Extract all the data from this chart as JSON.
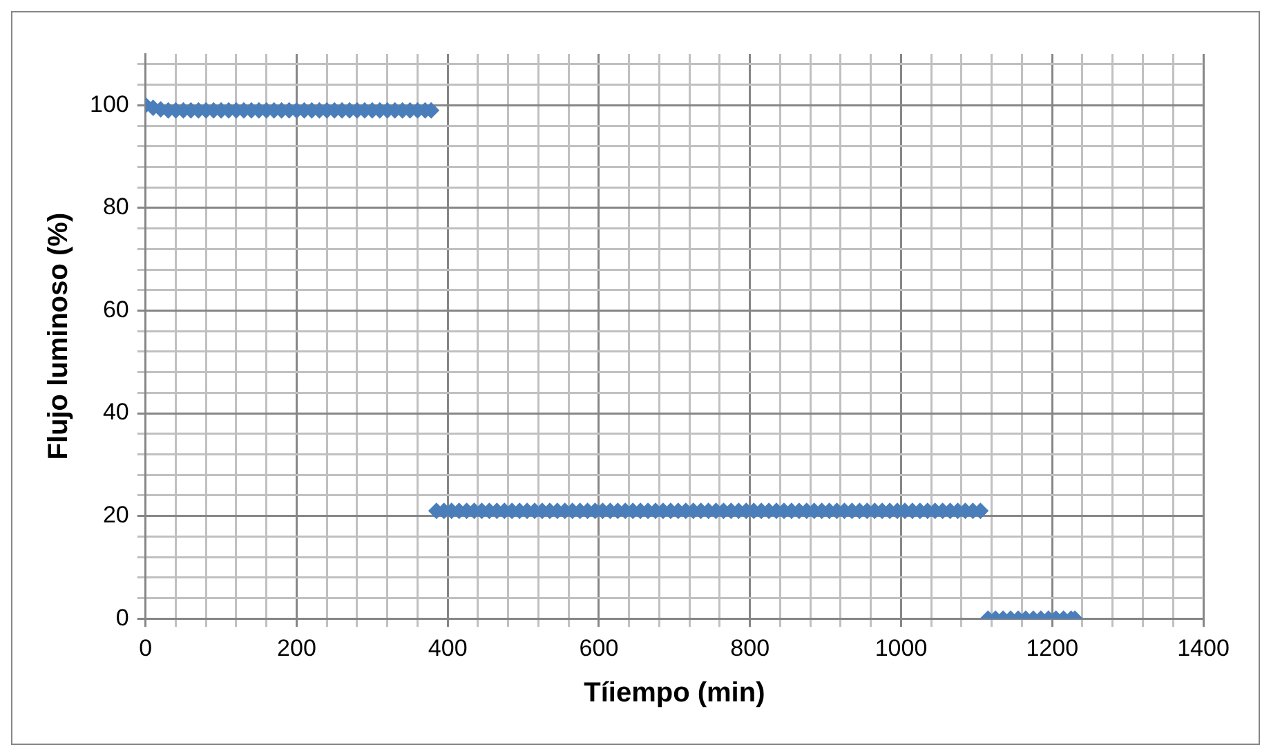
{
  "chart_data": {
    "type": "scatter",
    "xlabel": "Tíiempo (min)",
    "ylabel": "Flujo luminoso (%)",
    "marker": "diamond",
    "grid": true,
    "legend": false,
    "xlim": [
      0,
      1400
    ],
    "ylim": [
      0,
      110
    ],
    "xticks": [
      0,
      {
        "value": 40,
        "label": null
      },
      {
        "value": 80,
        "label": null
      },
      {
        "value": 120,
        "label": null
      },
      {
        "value": 160,
        "label": null
      },
      200,
      {
        "value": 240,
        "label": null
      },
      {
        "value": 280,
        "label": null
      },
      {
        "value": 320,
        "label": null
      },
      {
        "value": 360,
        "label": null
      },
      400,
      {
        "value": 440,
        "label": null
      },
      {
        "value": 480,
        "label": null
      },
      {
        "value": 520,
        "label": null
      },
      {
        "value": 560,
        "label": null
      },
      600,
      {
        "value": 640,
        "label": null
      },
      {
        "value": 680,
        "label": null
      },
      {
        "value": 720,
        "label": null
      },
      {
        "value": 760,
        "label": null
      },
      800,
      {
        "value": 840,
        "label": null
      },
      {
        "value": 880,
        "label": null
      },
      {
        "value": 920,
        "label": null
      },
      {
        "value": 960,
        "label": null
      },
      1000,
      {
        "value": 1040,
        "label": null
      },
      {
        "value": 1080,
        "label": null
      },
      {
        "value": 1120,
        "label": null
      },
      {
        "value": 1160,
        "label": null
      },
      1200,
      {
        "value": 1240,
        "label": null
      },
      {
        "value": 1280,
        "label": null
      },
      {
        "value": 1320,
        "label": null
      },
      {
        "value": 1360,
        "label": null
      },
      1400
    ],
    "yticks": [
      0,
      {
        "value": 4,
        "label": null
      },
      {
        "value": 8,
        "label": null
      },
      {
        "value": 12,
        "label": null
      },
      {
        "value": 16,
        "label": null
      },
      20,
      {
        "value": 24,
        "label": null
      },
      {
        "value": 28,
        "label": null
      },
      {
        "value": 32,
        "label": null
      },
      {
        "value": 36,
        "label": null
      },
      40,
      {
        "value": 44,
        "label": null
      },
      {
        "value": 48,
        "label": null
      },
      {
        "value": 52,
        "label": null
      },
      {
        "value": 56,
        "label": null
      },
      60,
      {
        "value": 64,
        "label": null
      },
      {
        "value": 68,
        "label": null
      },
      {
        "value": 72,
        "label": null
      },
      {
        "value": 76,
        "label": null
      },
      80,
      {
        "value": 84,
        "label": null
      },
      {
        "value": 88,
        "label": null
      },
      {
        "value": 92,
        "label": null
      },
      {
        "value": 96,
        "label": null
      },
      100,
      {
        "value": 104,
        "label": null
      },
      {
        "value": 108,
        "label": null
      }
    ],
    "series": [
      {
        "color": "#4a7ebb",
        "x": [
          0,
          10,
          20,
          30,
          40,
          50,
          60,
          70,
          80,
          90,
          100,
          110,
          120,
          130,
          140,
          150,
          160,
          170,
          180,
          190,
          200,
          210,
          220,
          230,
          240,
          250,
          260,
          270,
          280,
          290,
          300,
          310,
          320,
          330,
          340,
          350,
          360,
          370,
          378
        ],
        "values": [
          100,
          99.5,
          99.2,
          99,
          99,
          99,
          99,
          99,
          99,
          99,
          99,
          99,
          99,
          99,
          99,
          99,
          99,
          99,
          99,
          99,
          99,
          99,
          99,
          99,
          99,
          99,
          99,
          99,
          99,
          99,
          99,
          99,
          99,
          99,
          99,
          99,
          99,
          99,
          99
        ]
      },
      {
        "color": "#4a7ebb",
        "x": [
          385,
          395,
          405,
          415,
          425,
          435,
          445,
          455,
          465,
          475,
          485,
          495,
          505,
          515,
          525,
          535,
          545,
          555,
          565,
          575,
          585,
          595,
          605,
          615,
          625,
          635,
          645,
          655,
          665,
          675,
          685,
          695,
          705,
          715,
          725,
          735,
          745,
          755,
          765,
          775,
          785,
          795,
          805,
          815,
          825,
          835,
          845,
          855,
          865,
          875,
          885,
          895,
          905,
          915,
          925,
          935,
          945,
          955,
          965,
          975,
          985,
          995,
          1005,
          1015,
          1025,
          1035,
          1045,
          1055,
          1065,
          1075,
          1085,
          1095,
          1105
        ],
        "values": [
          21,
          21,
          21,
          21,
          21,
          21,
          21,
          21,
          21,
          21,
          21,
          21,
          21,
          21,
          21,
          21,
          21,
          21,
          21,
          21,
          21,
          21,
          21,
          21,
          21,
          21,
          21,
          21,
          21,
          21,
          21,
          21,
          21,
          21,
          21,
          21,
          21,
          21,
          21,
          21,
          21,
          21,
          21,
          21,
          21,
          21,
          21,
          21,
          21,
          21,
          21,
          21,
          21,
          21,
          21,
          21,
          21,
          21,
          21,
          21,
          21,
          21,
          21,
          21,
          21,
          21,
          21,
          21,
          21,
          21,
          21,
          21,
          21
        ]
      },
      {
        "color": "#4a7ebb",
        "x": [
          1115,
          1125,
          1135,
          1145,
          1155,
          1165,
          1175,
          1185,
          1195,
          1205,
          1215,
          1225,
          1230
        ],
        "values": [
          0,
          0,
          0,
          0,
          0,
          0,
          0,
          0,
          0,
          0,
          0,
          0,
          0
        ]
      }
    ]
  }
}
